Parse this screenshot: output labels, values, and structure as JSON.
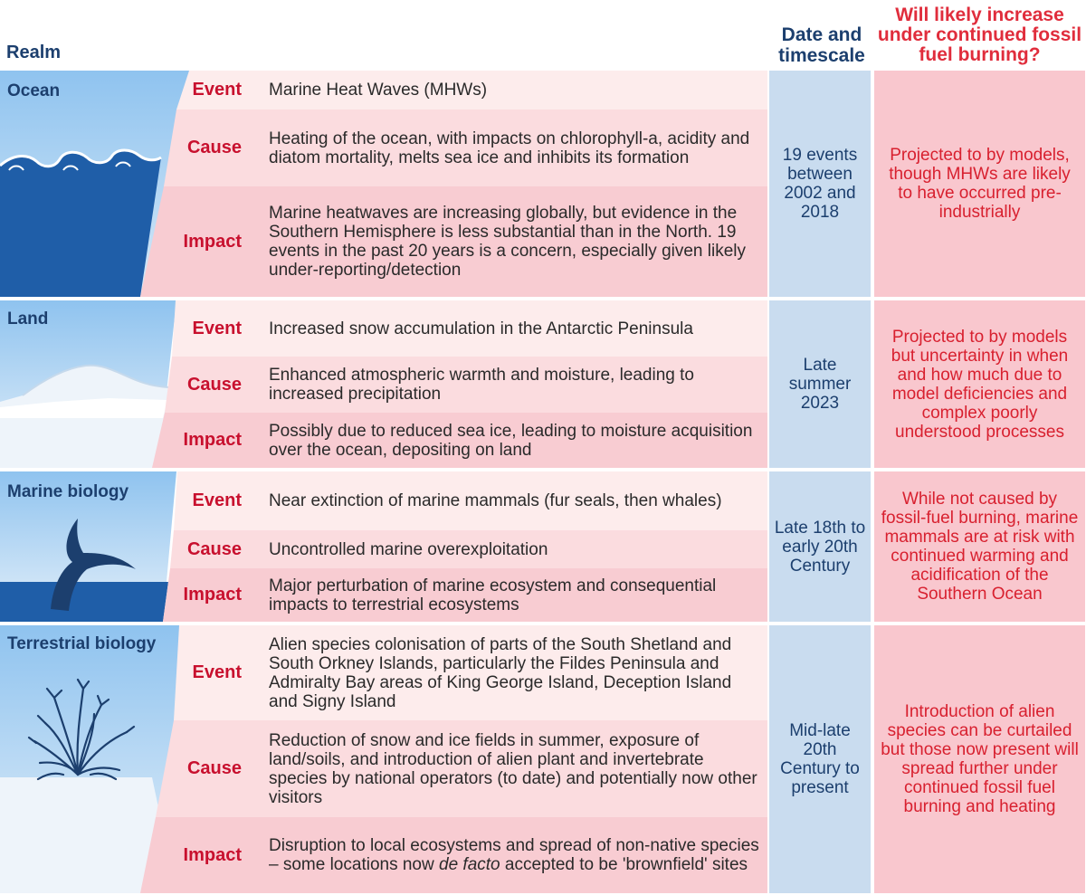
{
  "headers": {
    "realm": "Realm",
    "date": "Date and timescale",
    "likely": "Will likely increase under continued fossil fuel burning?"
  },
  "row_labels": {
    "event": "Event",
    "cause": "Cause",
    "impact": "Impact"
  },
  "realms": [
    {
      "name": "Ocean",
      "event": "Marine Heat Waves (MHWs)",
      "cause": "Heating of the ocean, with impacts on chlorophyll-a, acidity and diatom mortality, melts sea ice and inhibits its formation",
      "impact": "Marine heatwaves are increasing globally, but evidence in the Southern Hemisphere is less substantial than in the North. 19 events in the past 20 years is a concern, especially given likely under-reporting/detection",
      "date": "19 events between 2002 and 2018",
      "likely": "Projected to by models, though MHWs are likely to have occurred pre-industrially"
    },
    {
      "name": "Land",
      "event": "Increased snow accumulation in the Antarctic Peninsula",
      "cause": "Enhanced atmospheric warmth and moisture, leading to increased precipitation",
      "impact": "Possibly due to reduced sea ice, leading to moisture acquisition over the ocean, depositing on land",
      "date": "Late summer 2023",
      "likely": "Projected to by models but uncertainty in when and how much due to model deficiencies and complex poorly understood processes"
    },
    {
      "name": "Marine biology",
      "event": "Near extinction of marine mammals (fur seals, then whales)",
      "cause": "Uncontrolled marine overexploitation",
      "impact": "Major perturbation of marine ecosystem and consequential impacts to terrestrial ecosystems",
      "date": "Late 18th to early 20th Century",
      "likely": "While not caused by fossil-fuel burning, marine mammals are at risk with continued warming and acidification of the Southern Ocean"
    },
    {
      "name": "Terrestrial biology",
      "event": "Alien species colonisation of parts of the South Shetland and South Orkney Islands, particularly the Fildes Peninsula and Admiralty Bay areas of King George Island, Deception Island and Signy Island",
      "cause": "Reduction of snow and ice fields in summer, exposure of land/soils, and introduction of alien plant and invertebrate species by national operators (to date) and potentially now other visitors",
      "impact_before": "Disruption to local ecosystems and spread of non-native species – some locations now ",
      "impact_italic": "de facto",
      "impact_after": " accepted to be 'brownfield' sites",
      "date": "Mid-late 20th Century to present",
      "likely": "Introduction of alien species can be curtailed but those now present will spread further under continued fossil fuel burning and heating"
    }
  ],
  "colors": {
    "navy": "#1c3f6e",
    "red_label": "#c8102e",
    "red_header": "#e02d3c",
    "date_bg": "#c9dcef",
    "likely_bg": "#f9c7ce",
    "event_bg": "#fdecec",
    "cause_bg": "#fbdcdf",
    "impact_bg": "#f8ccd2"
  }
}
